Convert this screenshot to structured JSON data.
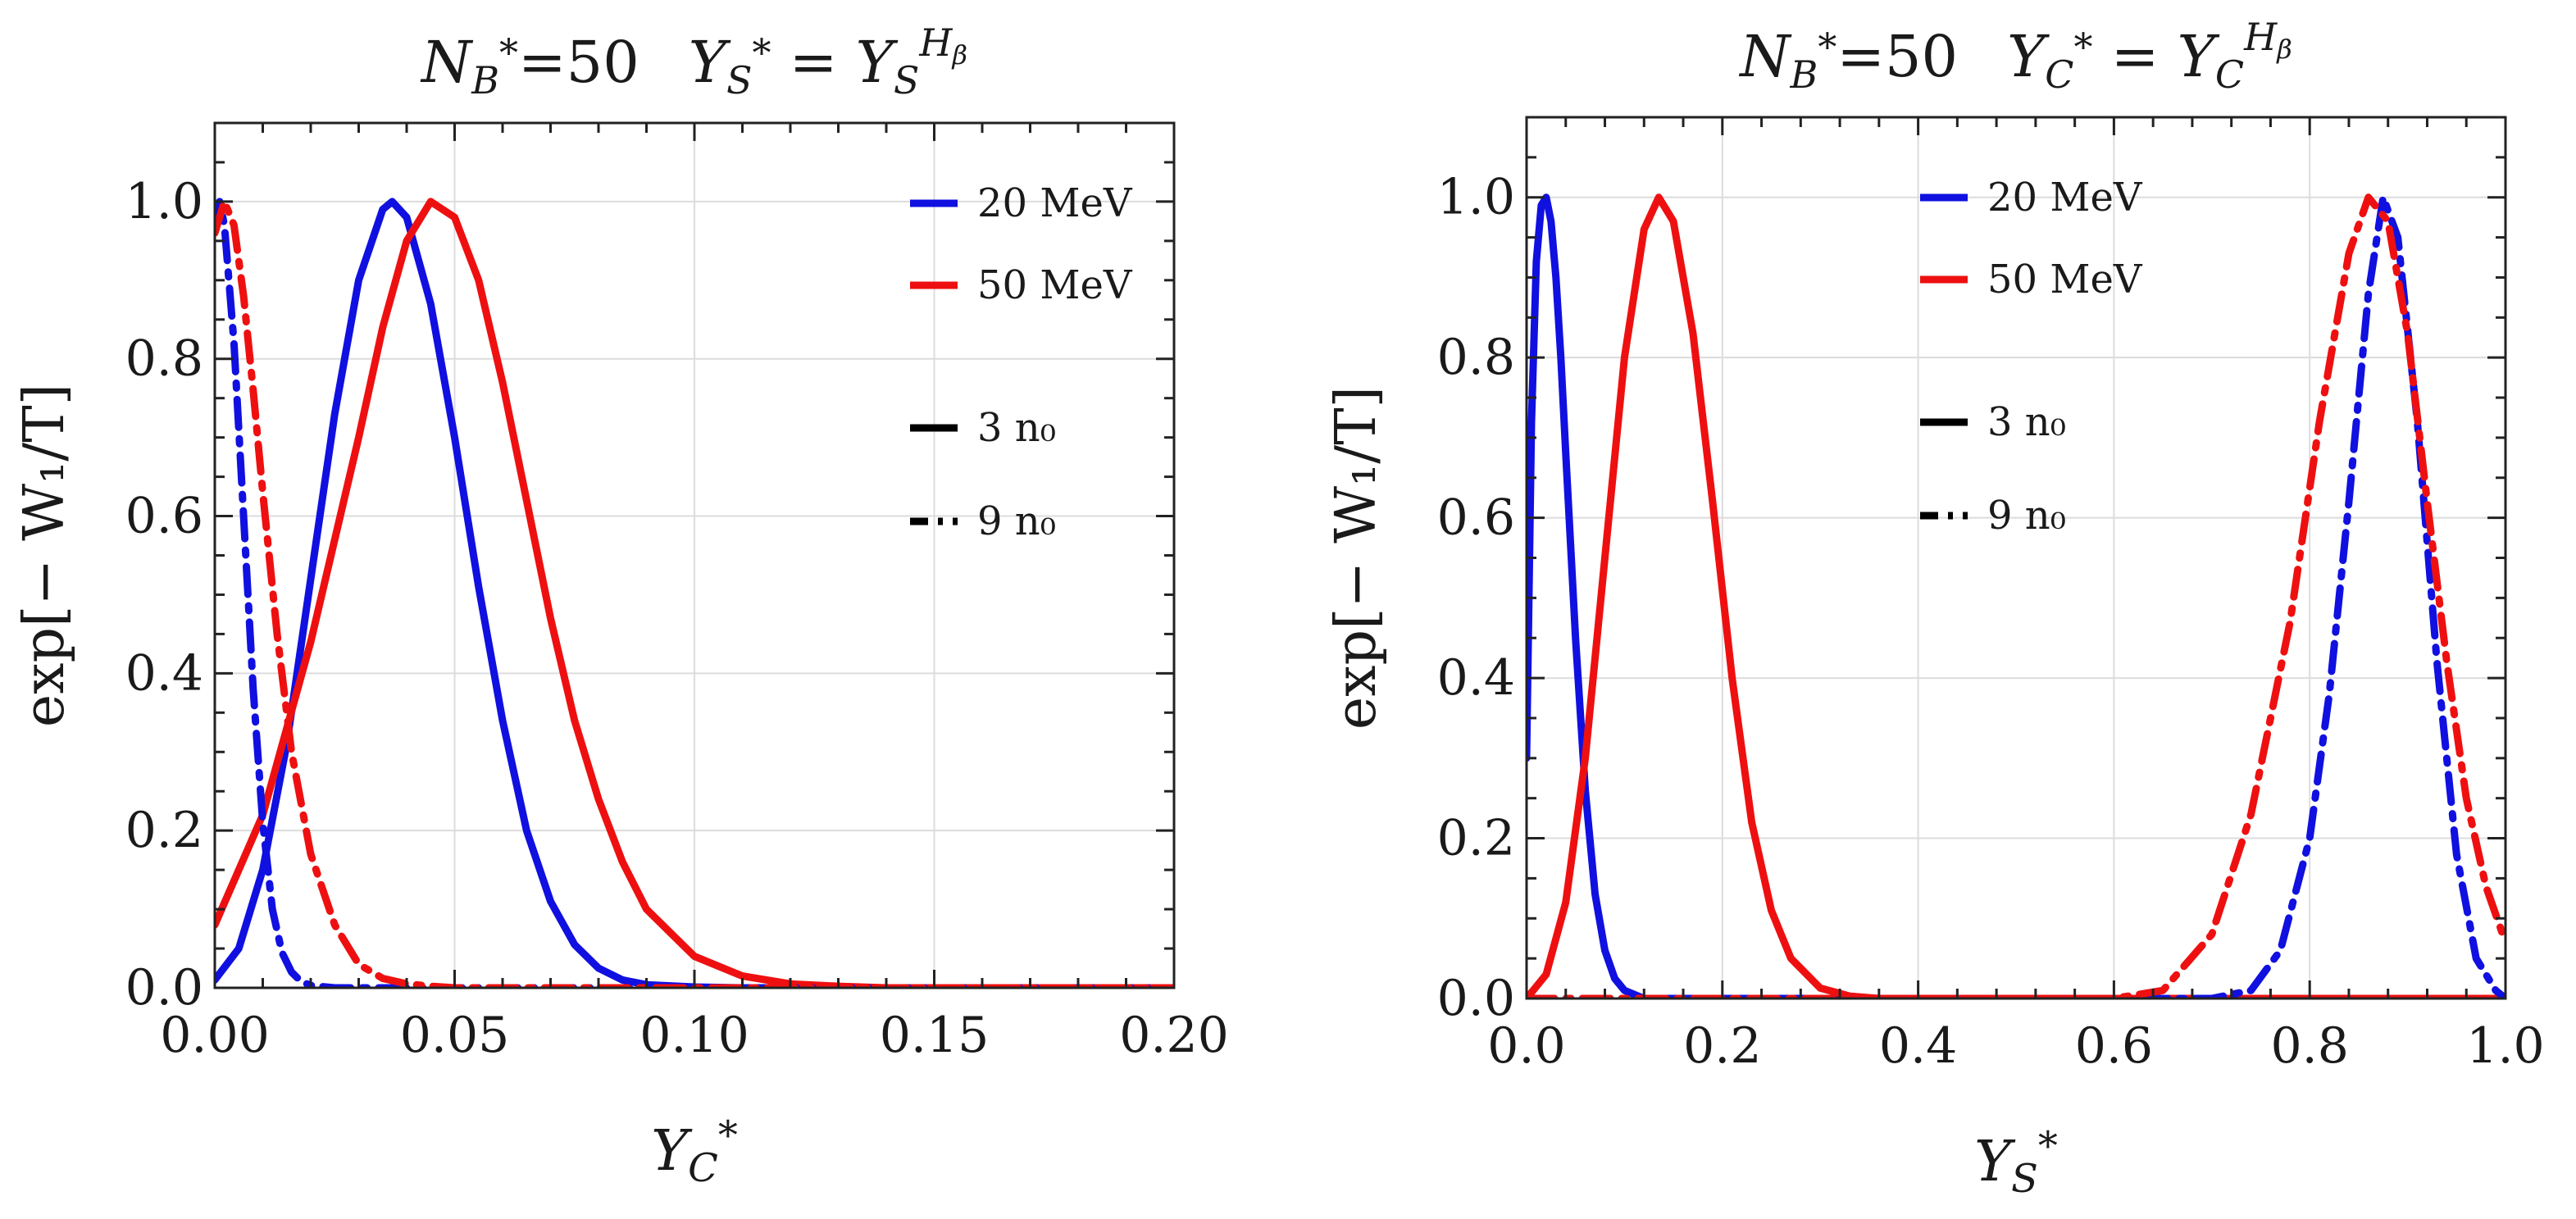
{
  "chart_data": [
    {
      "type": "line",
      "title": "N_B*=50    Y_S* = Y_S^{H_β}",
      "title_parts": {
        "left": "N",
        "left_sub": "B",
        "left_star": "*",
        "left_eq": "=50",
        "right": "Y",
        "right_sub": "S",
        "right_star": "*",
        "eq": " = ",
        "rhs": "Y",
        "rhs_sub": "S",
        "rhs_sup": "H",
        "rhs_sup_sub": "β"
      },
      "xlabel": "Y_C*",
      "xlabel_parts": {
        "base": "Y",
        "sub": "C",
        "star": "*"
      },
      "ylabel": "exp[− W₁/T]",
      "xlim": [
        0,
        0.2
      ],
      "ylim": [
        0,
        1.1
      ],
      "xticks": [
        0,
        0.05,
        0.1,
        0.15,
        0.2
      ],
      "xtick_labels": [
        "0.00",
        "0.05",
        "0.10",
        "0.15",
        "0.20"
      ],
      "yticks": [
        0,
        0.2,
        0.4,
        0.6,
        0.8,
        1.0
      ],
      "ytick_labels": [
        "0.0",
        "0.2",
        "0.4",
        "0.6",
        "0.8",
        "1.0"
      ],
      "legend_position": "top-right",
      "legend": [
        {
          "label": "20 MeV",
          "color": "#1010e0",
          "style": "solid"
        },
        {
          "label": "50 MeV",
          "color": "#ee1010",
          "style": "solid"
        },
        {
          "label": "3 n₀",
          "color": "#000000",
          "style": "solid"
        },
        {
          "label": "9 n₀",
          "color": "#000000",
          "style": "dashdot"
        }
      ],
      "series": [
        {
          "name": "20 MeV, 3 n₀",
          "color": "#1010e0",
          "style": "solid",
          "x": [
            0.0,
            0.005,
            0.01,
            0.015,
            0.02,
            0.025,
            0.03,
            0.035,
            0.037,
            0.04,
            0.045,
            0.05,
            0.055,
            0.06,
            0.065,
            0.07,
            0.075,
            0.08,
            0.085,
            0.09,
            0.1,
            0.11,
            0.2
          ],
          "y": [
            0.01,
            0.05,
            0.15,
            0.31,
            0.52,
            0.73,
            0.9,
            0.99,
            1.0,
            0.98,
            0.87,
            0.7,
            0.51,
            0.34,
            0.2,
            0.11,
            0.055,
            0.025,
            0.01,
            0.004,
            0.001,
            0.0,
            0.0
          ]
        },
        {
          "name": "50 MeV, 3 n₀",
          "color": "#ee1010",
          "style": "solid",
          "x": [
            0.0,
            0.01,
            0.02,
            0.03,
            0.035,
            0.04,
            0.045,
            0.05,
            0.055,
            0.06,
            0.065,
            0.07,
            0.075,
            0.08,
            0.085,
            0.09,
            0.1,
            0.11,
            0.12,
            0.13,
            0.14,
            0.15,
            0.2
          ],
          "y": [
            0.08,
            0.22,
            0.44,
            0.7,
            0.84,
            0.95,
            1.0,
            0.98,
            0.9,
            0.77,
            0.62,
            0.47,
            0.34,
            0.24,
            0.16,
            0.1,
            0.04,
            0.015,
            0.005,
            0.002,
            0.0,
            0.0,
            0.0
          ]
        },
        {
          "name": "20 MeV, 9 n₀",
          "color": "#1010e0",
          "style": "dashdot",
          "x": [
            0.0,
            0.001,
            0.002,
            0.004,
            0.006,
            0.008,
            0.01,
            0.012,
            0.014,
            0.016,
            0.018,
            0.02,
            0.025,
            0.03,
            0.05,
            0.2
          ],
          "y": [
            0.97,
            1.0,
            0.97,
            0.82,
            0.6,
            0.38,
            0.21,
            0.1,
            0.045,
            0.02,
            0.008,
            0.003,
            0.0,
            0.0,
            0.0,
            0.0
          ]
        },
        {
          "name": "50 MeV, 9 n₀",
          "color": "#ee1010",
          "style": "dashdot",
          "x": [
            0.0,
            0.002,
            0.004,
            0.006,
            0.008,
            0.01,
            0.013,
            0.016,
            0.02,
            0.025,
            0.03,
            0.035,
            0.04,
            0.045,
            0.05,
            0.06,
            0.2
          ],
          "y": [
            0.96,
            1.0,
            0.97,
            0.88,
            0.76,
            0.63,
            0.45,
            0.3,
            0.17,
            0.08,
            0.03,
            0.012,
            0.005,
            0.002,
            0.0,
            0.0,
            0.0
          ]
        }
      ]
    },
    {
      "type": "line",
      "title": "N_B*=50    Y_C* = Y_C^{H_β}",
      "title_parts": {
        "left": "N",
        "left_sub": "B",
        "left_star": "*",
        "left_eq": "=50",
        "right": "Y",
        "right_sub": "C",
        "right_star": "*",
        "eq": " = ",
        "rhs": "Y",
        "rhs_sub": "C",
        "rhs_sup": "H",
        "rhs_sup_sub": "β"
      },
      "xlabel": "Y_S*",
      "xlabel_parts": {
        "base": "Y",
        "sub": "S",
        "star": "*"
      },
      "ylabel": "exp[− W₁/T]",
      "xlim": [
        0,
        1.0
      ],
      "ylim": [
        0,
        1.1
      ],
      "xticks": [
        0,
        0.2,
        0.4,
        0.6,
        0.8,
        1.0
      ],
      "xtick_labels": [
        "0.0",
        "0.2",
        "0.4",
        "0.6",
        "0.8",
        "1.0"
      ],
      "yticks": [
        0,
        0.2,
        0.4,
        0.6,
        0.8,
        1.0
      ],
      "ytick_labels": [
        "0.0",
        "0.2",
        "0.4",
        "0.6",
        "0.8",
        "1.0"
      ],
      "legend_position": "top-center",
      "legend": [
        {
          "label": "20 MeV",
          "color": "#1010e0",
          "style": "solid"
        },
        {
          "label": "50 MeV",
          "color": "#ee1010",
          "style": "solid"
        },
        {
          "label": "3 n₀",
          "color": "#000000",
          "style": "solid"
        },
        {
          "label": "9 n₀",
          "color": "#000000",
          "style": "dashdot"
        }
      ],
      "series": [
        {
          "name": "20 MeV, 3 n₀",
          "color": "#1010e0",
          "style": "solid",
          "x": [
            0.0,
            0.005,
            0.01,
            0.015,
            0.02,
            0.025,
            0.03,
            0.035,
            0.04,
            0.05,
            0.06,
            0.07,
            0.08,
            0.09,
            0.1,
            0.12,
            1.0
          ],
          "y": [
            0.3,
            0.72,
            0.92,
            0.99,
            1.0,
            0.97,
            0.9,
            0.8,
            0.68,
            0.45,
            0.26,
            0.13,
            0.06,
            0.025,
            0.01,
            0.0,
            0.0
          ]
        },
        {
          "name": "50 MeV, 3 n₀",
          "color": "#ee1010",
          "style": "solid",
          "x": [
            0.0,
            0.02,
            0.04,
            0.06,
            0.08,
            0.1,
            0.12,
            0.135,
            0.15,
            0.17,
            0.19,
            0.21,
            0.23,
            0.25,
            0.27,
            0.3,
            0.33,
            0.36,
            1.0
          ],
          "y": [
            0.0,
            0.03,
            0.12,
            0.3,
            0.55,
            0.8,
            0.96,
            1.0,
            0.97,
            0.83,
            0.62,
            0.4,
            0.22,
            0.11,
            0.05,
            0.013,
            0.003,
            0.0,
            0.0
          ]
        },
        {
          "name": "20 MeV, 9 n₀",
          "color": "#1010e0",
          "style": "dashdot",
          "x": [
            0.0,
            0.7,
            0.74,
            0.77,
            0.8,
            0.82,
            0.84,
            0.86,
            0.875,
            0.89,
            0.91,
            0.93,
            0.95,
            0.97,
            0.99,
            1.0
          ],
          "y": [
            0.0,
            0.0,
            0.01,
            0.06,
            0.2,
            0.38,
            0.62,
            0.88,
            1.0,
            0.95,
            0.72,
            0.42,
            0.18,
            0.05,
            0.01,
            0.0
          ]
        },
        {
          "name": "50 MeV, 9 n₀",
          "color": "#ee1010",
          "style": "dashdot",
          "x": [
            0.0,
            0.6,
            0.65,
            0.7,
            0.74,
            0.78,
            0.81,
            0.84,
            0.86,
            0.88,
            0.9,
            0.92,
            0.94,
            0.96,
            0.98,
            1.0
          ],
          "y": [
            0.0,
            0.0,
            0.01,
            0.08,
            0.23,
            0.47,
            0.72,
            0.93,
            1.0,
            0.97,
            0.83,
            0.62,
            0.42,
            0.25,
            0.14,
            0.07
          ]
        }
      ]
    }
  ]
}
